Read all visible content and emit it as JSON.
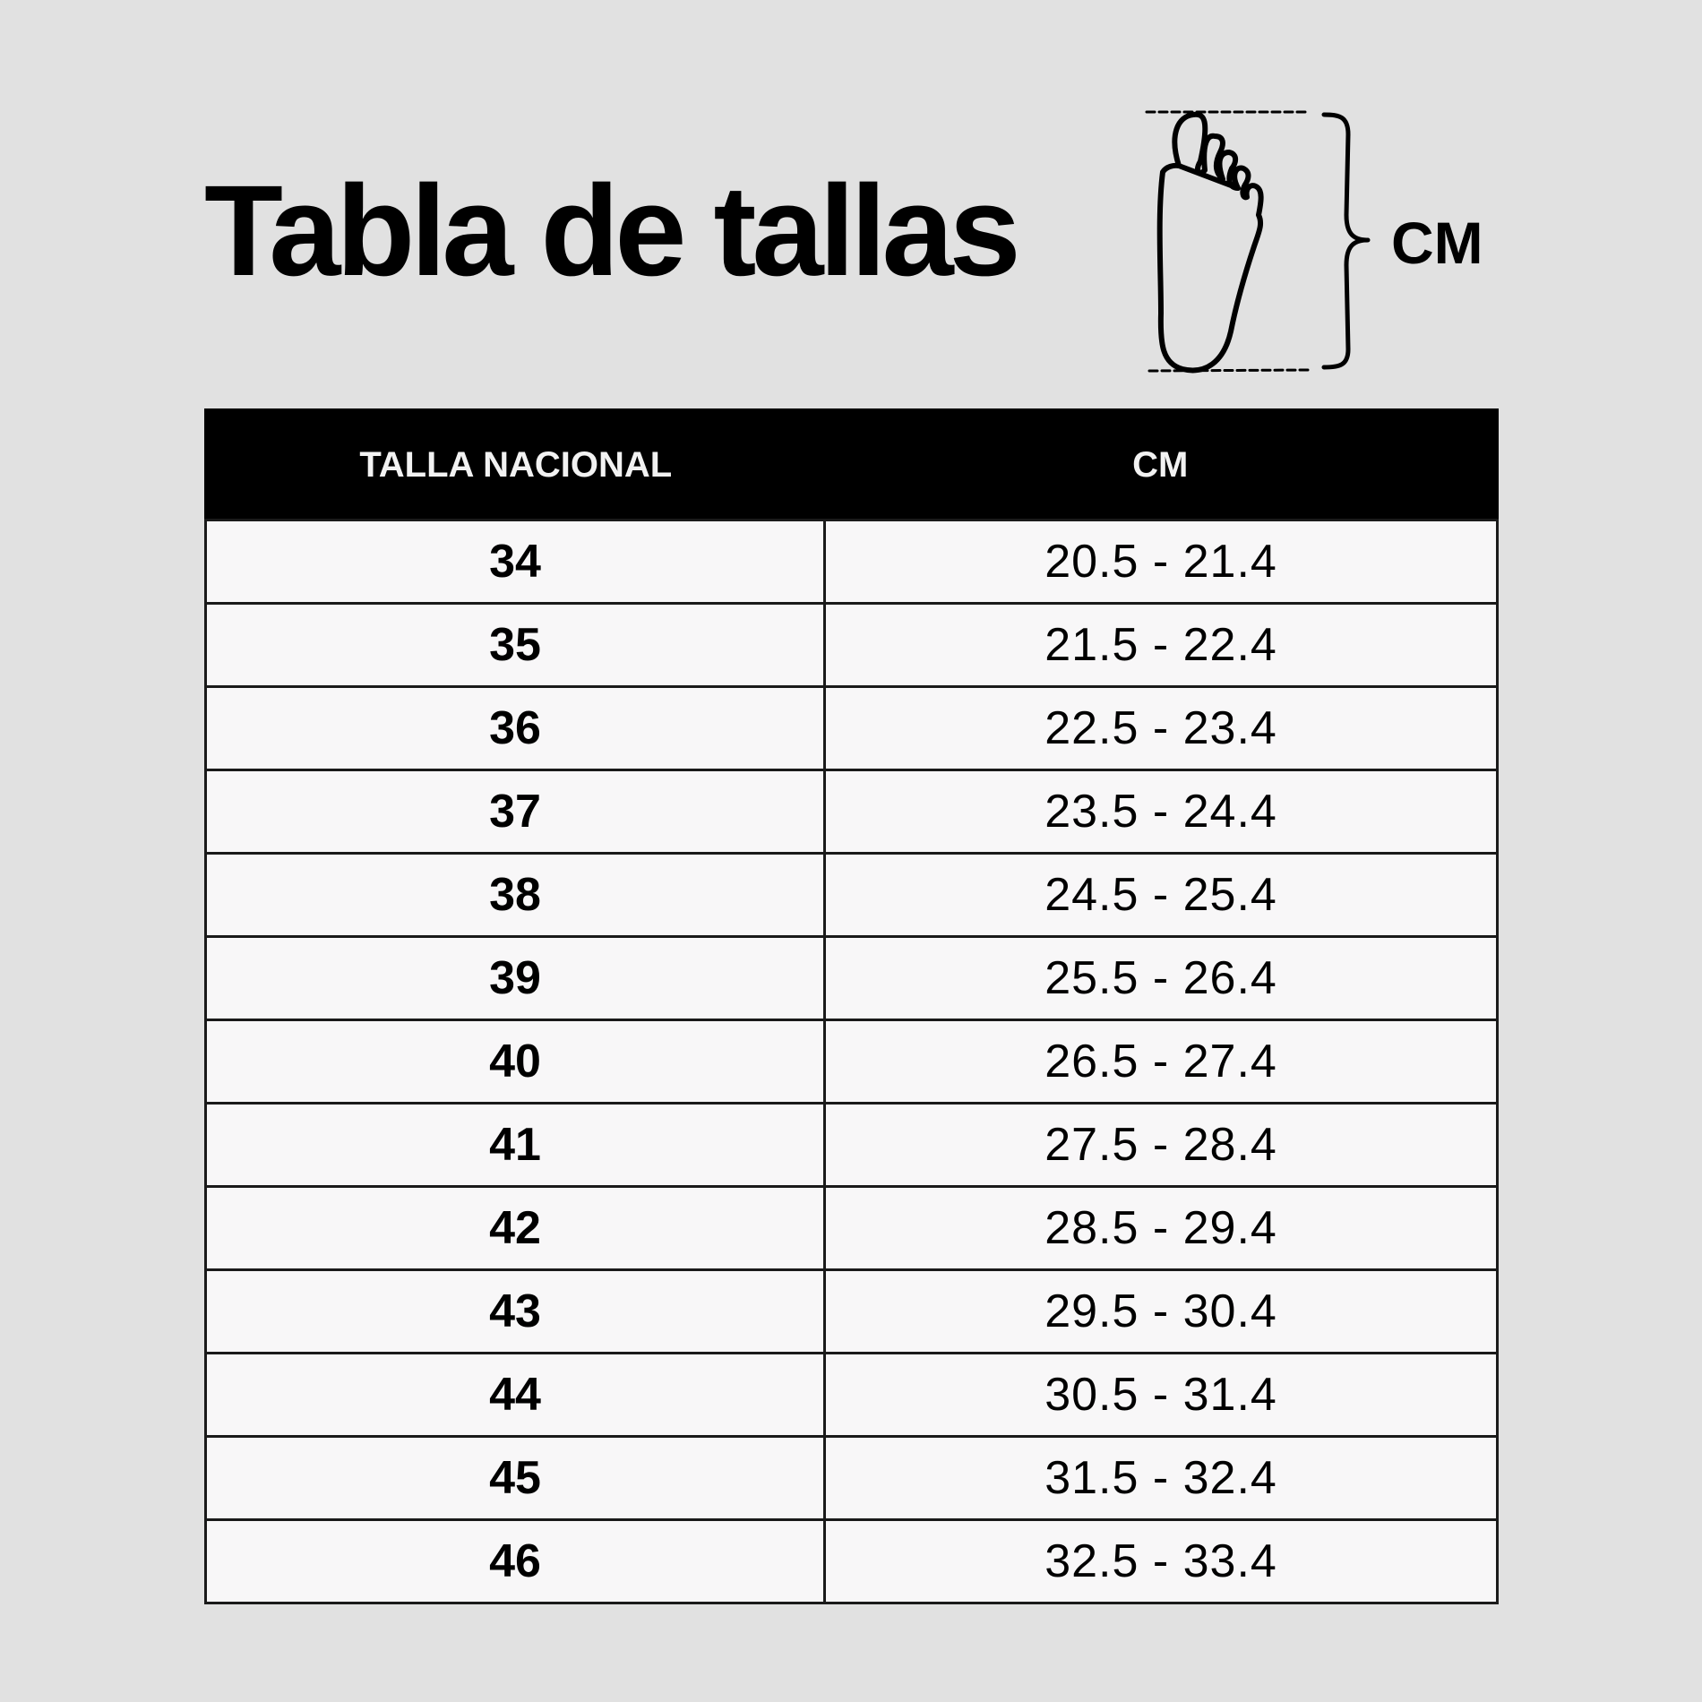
{
  "title": "Tabla de tallas",
  "diagram": {
    "unit_label": "CM",
    "icon": "foot-icon"
  },
  "table": {
    "headers": [
      "TALLA NACIONAL",
      "CM"
    ],
    "rows": [
      {
        "size": "34",
        "cm": "20.5 - 21.4"
      },
      {
        "size": "35",
        "cm": "21.5 - 22.4"
      },
      {
        "size": "36",
        "cm": "22.5 - 23.4"
      },
      {
        "size": "37",
        "cm": "23.5 - 24.4"
      },
      {
        "size": "38",
        "cm": "24.5 - 25.4"
      },
      {
        "size": "39",
        "cm": "25.5 - 26.4"
      },
      {
        "size": "40",
        "cm": "26.5 - 27.4"
      },
      {
        "size": "41",
        "cm": "27.5 - 28.4"
      },
      {
        "size": "42",
        "cm": "28.5 - 29.4"
      },
      {
        "size": "43",
        "cm": "29.5 - 30.4"
      },
      {
        "size": "44",
        "cm": "30.5 - 31.4"
      },
      {
        "size": "45",
        "cm": "31.5 - 32.4"
      },
      {
        "size": "46",
        "cm": "32.5 - 33.4"
      }
    ]
  },
  "colors": {
    "background": "#e1e1e1",
    "header": "#000000",
    "cell": "#f8f7f8"
  }
}
